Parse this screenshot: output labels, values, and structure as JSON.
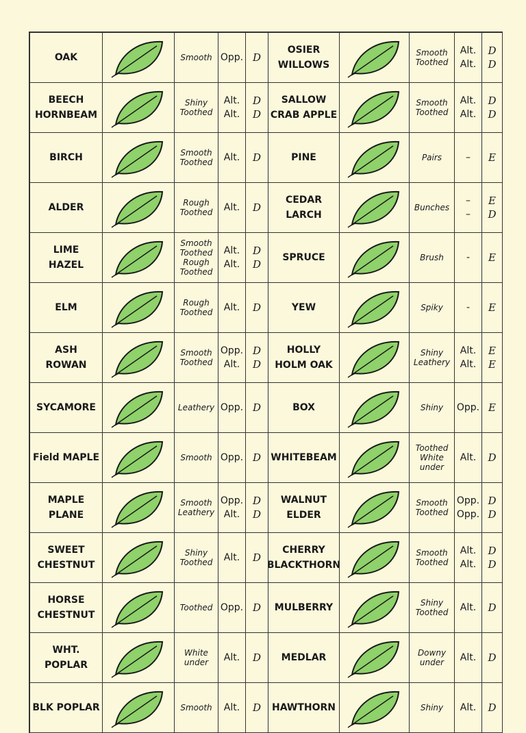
{
  "table": {
    "rows": [
      {
        "left": {
          "name": [
            "OAK"
          ],
          "texture": [
            "Smooth"
          ],
          "arrangement": [
            "Opp."
          ],
          "type": [
            "D"
          ]
        },
        "right": {
          "name": [
            "OSIER",
            "WILLOWS"
          ],
          "texture": [
            "Smooth",
            "Toothed"
          ],
          "arrangement": [
            "Alt.",
            "Alt."
          ],
          "type": [
            "D",
            "D"
          ]
        }
      },
      {
        "left": {
          "name": [
            "BEECH",
            "HORNBEAM"
          ],
          "texture": [
            "Shiny",
            "Toothed"
          ],
          "arrangement": [
            "Alt.",
            "Alt."
          ],
          "type": [
            "D",
            "D"
          ]
        },
        "right": {
          "name": [
            "SALLOW",
            "CRAB APPLE"
          ],
          "texture": [
            "Smooth",
            "Toothed"
          ],
          "arrangement": [
            "Alt.",
            "Alt."
          ],
          "type": [
            "D",
            "D"
          ]
        }
      },
      {
        "left": {
          "name": [
            "BIRCH"
          ],
          "texture": [
            "Smooth Toothed"
          ],
          "arrangement": [
            "Alt."
          ],
          "type": [
            "D"
          ]
        },
        "right": {
          "name": [
            "PINE"
          ],
          "texture": [
            "Pairs"
          ],
          "arrangement": [
            "–"
          ],
          "type": [
            "E"
          ]
        }
      },
      {
        "left": {
          "name": [
            "ALDER"
          ],
          "texture": [
            "Rough Toothed"
          ],
          "arrangement": [
            "Alt."
          ],
          "type": [
            "D"
          ]
        },
        "right": {
          "name": [
            "CEDAR",
            "LARCH"
          ],
          "texture": [
            "Bunches"
          ],
          "arrangement": [
            "–",
            "–"
          ],
          "type": [
            "E",
            "D"
          ]
        }
      },
      {
        "left": {
          "name": [
            "LIME",
            "HAZEL"
          ],
          "texture": [
            "Smooth Toothed",
            "Rough Toothed"
          ],
          "arrangement": [
            "Alt.",
            "Alt."
          ],
          "type": [
            "D",
            "D"
          ]
        },
        "right": {
          "name": [
            "SPRUCE"
          ],
          "texture": [
            "Brush"
          ],
          "arrangement": [
            "-"
          ],
          "type": [
            "E"
          ]
        }
      },
      {
        "left": {
          "name": [
            "ELM"
          ],
          "texture": [
            "Rough Toothed"
          ],
          "arrangement": [
            "Alt."
          ],
          "type": [
            "D"
          ]
        },
        "right": {
          "name": [
            "YEW"
          ],
          "texture": [
            "Spiky"
          ],
          "arrangement": [
            "-"
          ],
          "type": [
            "E"
          ]
        }
      },
      {
        "left": {
          "name": [
            "ASH",
            "ROWAN"
          ],
          "texture": [
            "Smooth",
            "Toothed"
          ],
          "arrangement": [
            "Opp.",
            "Alt."
          ],
          "type": [
            "D",
            "D"
          ]
        },
        "right": {
          "name": [
            "HOLLY",
            "HOLM OAK"
          ],
          "texture": [
            "Shiny",
            "Leathery"
          ],
          "arrangement": [
            "Alt.",
            "Alt."
          ],
          "type": [
            "E",
            "E"
          ]
        }
      },
      {
        "left": {
          "name": [
            "SYCAMORE"
          ],
          "texture": [
            "Leathery"
          ],
          "arrangement": [
            "Opp."
          ],
          "type": [
            "D"
          ]
        },
        "right": {
          "name": [
            "BOX"
          ],
          "texture": [
            "Shiny"
          ],
          "arrangement": [
            "Opp."
          ],
          "type": [
            "E"
          ]
        }
      },
      {
        "left": {
          "name": [
            "Field MAPLE"
          ],
          "texture": [
            "Smooth"
          ],
          "arrangement": [
            "Opp."
          ],
          "type": [
            "D"
          ]
        },
        "right": {
          "name": [
            "WHITEBEAM"
          ],
          "texture": [
            "Toothed",
            "White",
            "under"
          ],
          "arrangement": [
            "Alt."
          ],
          "type": [
            "D"
          ]
        }
      },
      {
        "left": {
          "name": [
            "MAPLE",
            "PLANE"
          ],
          "texture": [
            "Smooth",
            "Leathery"
          ],
          "arrangement": [
            "Opp.",
            "Alt."
          ],
          "type": [
            "D",
            "D"
          ]
        },
        "right": {
          "name": [
            "WALNUT",
            "ELDER"
          ],
          "texture": [
            "Smooth",
            "Toothed"
          ],
          "arrangement": [
            "Opp.",
            "Opp."
          ],
          "type": [
            "D",
            "D"
          ]
        }
      },
      {
        "left": {
          "name": [
            "SWEET",
            "CHESTNUT"
          ],
          "texture": [
            "Shiny",
            "Toothed"
          ],
          "arrangement": [
            "Alt."
          ],
          "type": [
            "D"
          ]
        },
        "right": {
          "name": [
            "CHERRY",
            "BLACKTHORN"
          ],
          "texture": [
            "Smooth",
            "Toothed"
          ],
          "arrangement": [
            "Alt.",
            "Alt."
          ],
          "type": [
            "D",
            "D"
          ]
        }
      },
      {
        "left": {
          "name": [
            "HORSE",
            "CHESTNUT"
          ],
          "texture": [
            "Toothed"
          ],
          "arrangement": [
            "Opp."
          ],
          "type": [
            "D"
          ]
        },
        "right": {
          "name": [
            "MULBERRY"
          ],
          "texture": [
            "Shiny",
            "Toothed"
          ],
          "arrangement": [
            "Alt."
          ],
          "type": [
            "D"
          ]
        }
      },
      {
        "left": {
          "name": [
            "WHT. POPLAR"
          ],
          "texture": [
            "White",
            "under"
          ],
          "arrangement": [
            "Alt."
          ],
          "type": [
            "D"
          ]
        },
        "right": {
          "name": [
            "MEDLAR"
          ],
          "texture": [
            "Downy",
            "under"
          ],
          "arrangement": [
            "Alt."
          ],
          "type": [
            "D"
          ]
        }
      },
      {
        "left": {
          "name": [
            "BLK POPLAR"
          ],
          "texture": [
            "Smooth"
          ],
          "arrangement": [
            "Alt."
          ],
          "type": [
            "D"
          ]
        },
        "right": {
          "name": [
            "HAWTHORN"
          ],
          "texture": [
            "Shiny"
          ],
          "arrangement": [
            "Alt."
          ],
          "type": [
            "D"
          ]
        }
      }
    ]
  }
}
